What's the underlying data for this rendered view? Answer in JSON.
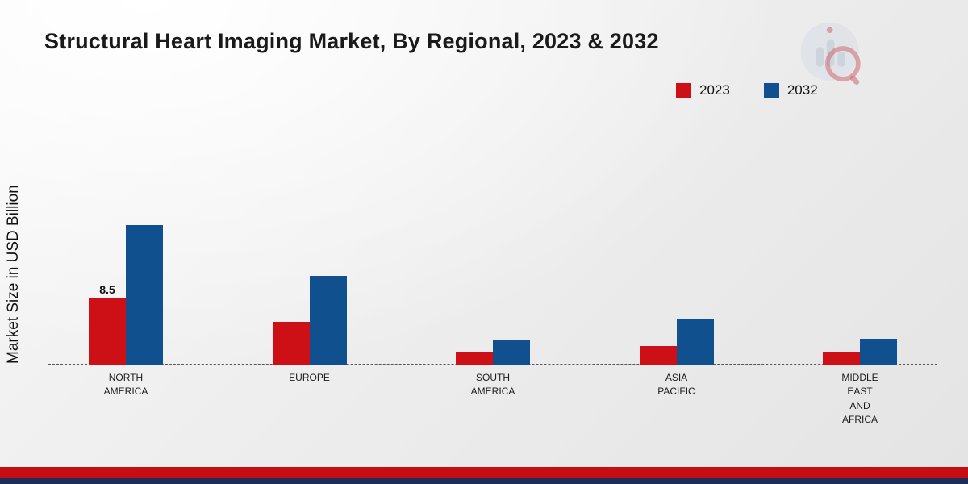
{
  "title": "Structural Heart Imaging Market, By Regional, 2023 & 2032",
  "ylabel": "Market Size in USD Billion",
  "colors": {
    "series_2023": "#cc1016",
    "series_2032": "#11508e",
    "footer_red": "#c50d12",
    "footer_navy": "#1c2d5a"
  },
  "chart_data": {
    "type": "bar",
    "title": "Structural Heart Imaging Market, By Regional, 2023 & 2032",
    "xlabel": "",
    "ylabel": "Market Size in USD Billion",
    "ylim": [
      0,
      18
    ],
    "grid": false,
    "legend_position": "top-right",
    "categories": [
      "North America",
      "Europe",
      "South America",
      "Asia Pacific",
      "Middle East and Africa"
    ],
    "category_lines": [
      [
        "NORTH",
        "AMERICA"
      ],
      [
        "EUROPE"
      ],
      [
        "SOUTH",
        "AMERICA"
      ],
      [
        "ASIA",
        "PACIFIC"
      ],
      [
        "MIDDLE",
        "EAST",
        "AND",
        "AFRICA"
      ]
    ],
    "series": [
      {
        "name": "2023",
        "color": "#cc1016",
        "values": [
          8.5,
          5.5,
          1.7,
          2.4,
          1.7
        ]
      },
      {
        "name": "2032",
        "color": "#11508e",
        "values": [
          17.8,
          11.3,
          3.2,
          5.8,
          3.3
        ]
      }
    ],
    "bar_labels": [
      {
        "series": 0,
        "index": 0,
        "text": "8.5"
      }
    ]
  }
}
